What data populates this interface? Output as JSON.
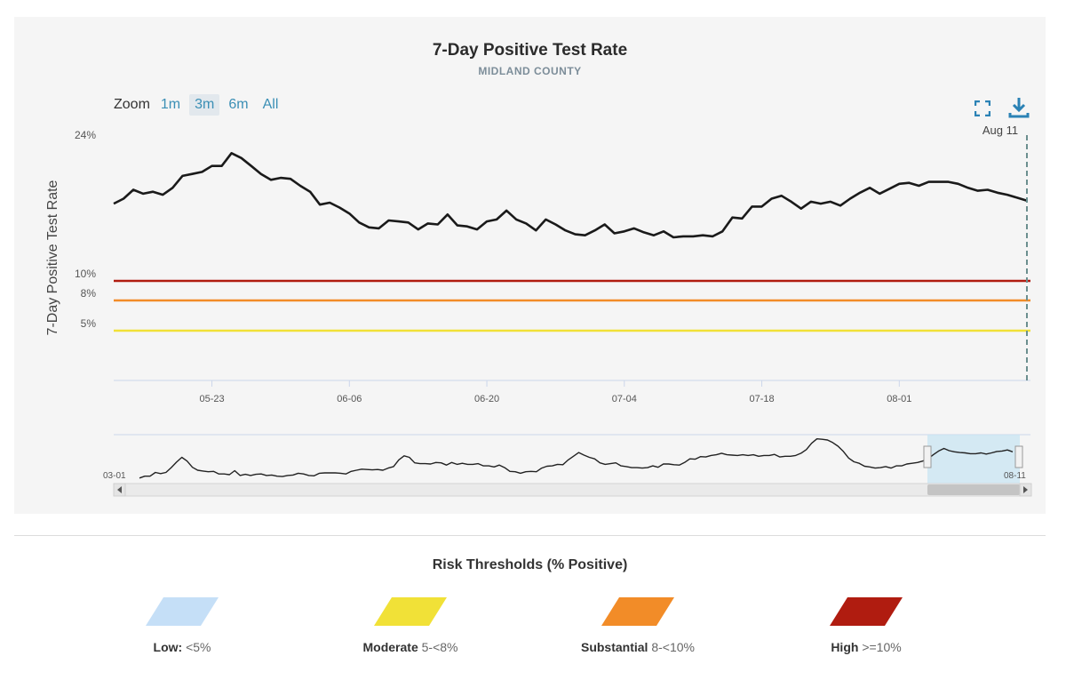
{
  "chart_title": "7-Day Positive Test Rate",
  "chart_subtitle": "MIDLAND COUNTY",
  "zoom": {
    "label": "Zoom",
    "options": [
      "1m",
      "3m",
      "6m",
      "All"
    ],
    "selected": "3m"
  },
  "icons": {
    "fullscreen": "fullscreen-icon",
    "download": "download-icon",
    "scroll_left": "chevron-left-icon",
    "scroll_right": "chevron-right-icon"
  },
  "crosshair_label": "Aug 11",
  "legend": {
    "title": "Risk Thresholds (% Positive)",
    "items": [
      {
        "name": "Low:",
        "range": "<5%",
        "color": "#c5dff7"
      },
      {
        "name": "Moderate",
        "range": "5-<8%",
        "color": "#f1e137"
      },
      {
        "name": "Substantial",
        "range": "8-<10%",
        "color": "#f28c28"
      },
      {
        "name": "High",
        "range": ">=10%",
        "color": "#b01c10"
      }
    ]
  },
  "chart_data": {
    "type": "line",
    "ylabel": "7-Day Positive Test Rate",
    "y_ticks": [
      {
        "value": 5,
        "label": "5%"
      },
      {
        "value": 8,
        "label": "8%"
      },
      {
        "value": 10,
        "label": "10%"
      },
      {
        "value": 24,
        "label": "24%"
      }
    ],
    "x_ticks": [
      {
        "day": 10,
        "label": "05-23"
      },
      {
        "day": 24,
        "label": "06-06"
      },
      {
        "day": 38,
        "label": "06-20"
      },
      {
        "day": 52,
        "label": "07-04"
      },
      {
        "day": 66,
        "label": "07-18"
      },
      {
        "day": 80,
        "label": "08-01"
      }
    ],
    "x_range": [
      "05-13",
      "08-11"
    ],
    "thresholds": [
      {
        "value": 10,
        "color": "#b01c10"
      },
      {
        "value": 8,
        "color": "#f28c28"
      },
      {
        "value": 5,
        "color": "#f1e137"
      }
    ],
    "series": [
      {
        "color": "#1a1a1a",
        "values": [
          17.8,
          18.3,
          19.2,
          18.8,
          19.0,
          18.7,
          19.4,
          20.6,
          20.8,
          21.0,
          21.6,
          21.6,
          22.9,
          22.4,
          21.6,
          20.8,
          20.2,
          20.4,
          20.3,
          19.6,
          19.0,
          17.7,
          17.9,
          17.4,
          16.8,
          15.9,
          15.4,
          15.3,
          16.1,
          16.0,
          15.9,
          15.2,
          15.8,
          15.7,
          16.7,
          15.6,
          15.5,
          15.2,
          16.0,
          16.2,
          17.1,
          16.2,
          15.8,
          15.1,
          16.2,
          15.7,
          15.1,
          14.7,
          14.6,
          15.1,
          15.7,
          14.8,
          15.0,
          15.3,
          14.9,
          14.6,
          15.0,
          14.4,
          14.5,
          14.5,
          14.6,
          14.5,
          15.0,
          16.4,
          16.3,
          17.5,
          17.5,
          18.3,
          18.6,
          18.0,
          17.3,
          18.0,
          17.8,
          18.0,
          17.6,
          18.3,
          18.9,
          19.4,
          18.8,
          19.3,
          19.8,
          19.9,
          19.6,
          20.0,
          20.0,
          20.0,
          19.8,
          19.4,
          19.1,
          19.2,
          18.9,
          18.7,
          18.4,
          18.1
        ]
      }
    ],
    "navigator": {
      "start_label": "03-01",
      "end_label": "08-11",
      "values": [
        14.5,
        15.0,
        15.0,
        16.0,
        15.7,
        16.0,
        17.3,
        18.8,
        20.1,
        19.1,
        17.4,
        16.6,
        16.4,
        16.2,
        16.3,
        15.6,
        15.6,
        15.4,
        16.5,
        15.2,
        15.5,
        15.2,
        15.5,
        15.6,
        15.2,
        15.3,
        15.0,
        14.9,
        15.2,
        15.3,
        15.8,
        15.6,
        15.2,
        15.1,
        15.8,
        15.9,
        15.9,
        15.9,
        15.8,
        15.6,
        16.3,
        16.6,
        16.9,
        16.8,
        16.7,
        16.8,
        16.6,
        17.2,
        17.6,
        19.4,
        20.5,
        20.1,
        18.6,
        18.4,
        18.4,
        18.3,
        18.7,
        18.6,
        18.0,
        18.7,
        18.2,
        18.5,
        18.2,
        18.2,
        18.4,
        17.8,
        17.8,
        17.5,
        18.0,
        17.3,
        16.3,
        16.2,
        15.8,
        16.2,
        16.3,
        16.2,
        17.2,
        17.7,
        17.8,
        18.2,
        18.1,
        19.4,
        20.4,
        21.4,
        20.7,
        20.1,
        19.7,
        18.6,
        18.2,
        18.4,
        18.6,
        17.8,
        17.6,
        17.3,
        17.3,
        17.2,
        17.3,
        17.8,
        17.4,
        18.3,
        18.3,
        18.1,
        18.0,
        18.7,
        19.7,
        19.6,
        20.3,
        20.2,
        20.6,
        20.8,
        21.2,
        20.8,
        20.7,
        20.6,
        20.8,
        20.6,
        20.8,
        20.4,
        20.6,
        20.6,
        20.9,
        20.2,
        20.4,
        20.4,
        20.6,
        21.2,
        22.2,
        23.9,
        25.1,
        25.0,
        24.8,
        24.1,
        23.1,
        21.7,
        19.9,
        18.9,
        18.5,
        17.7,
        17.5,
        17.2,
        17.3,
        17.6,
        17.2,
        17.8,
        17.8,
        18.3,
        18.5,
        18.7,
        19.1,
        19.7,
        20.8,
        21.8,
        22.5,
        21.9,
        21.6,
        21.4,
        21.3,
        21.1,
        21.1,
        21.3,
        21.0,
        21.3,
        21.7,
        21.8,
        22.1,
        21.6
      ]
    }
  }
}
